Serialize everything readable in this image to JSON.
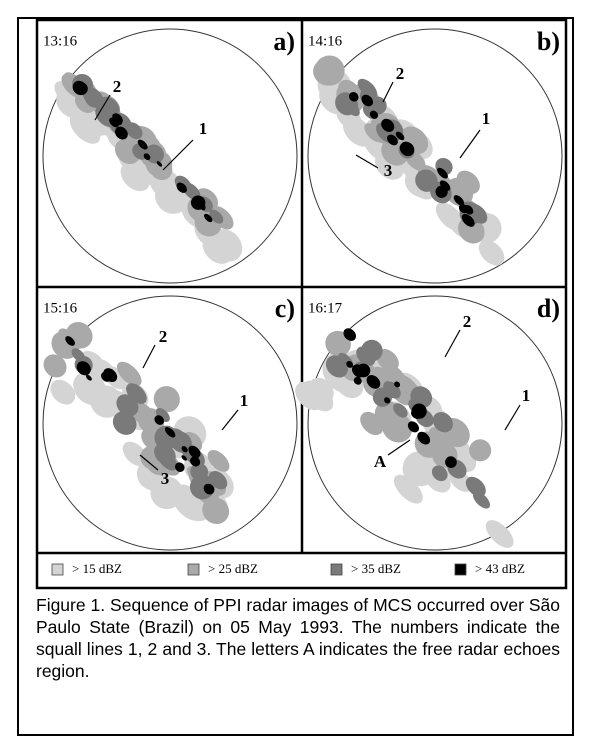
{
  "panels": [
    {
      "time": "13:16",
      "letter": "a)",
      "labels": [
        "2",
        "1"
      ]
    },
    {
      "time": "14:16",
      "letter": "b)",
      "labels": [
        "2",
        "1",
        "3"
      ]
    },
    {
      "time": "15:16",
      "letter": "c)",
      "labels": [
        "2",
        "1",
        "3"
      ]
    },
    {
      "time": "16:17",
      "letter": "d)",
      "labels": [
        "2",
        "1",
        "A"
      ]
    }
  ],
  "legend": [
    "> 15 dBZ",
    "> 25 dBZ",
    "> 35 dBZ",
    "> 43 dBZ"
  ],
  "caption": "Figure 1. Sequence of PPI radar images of MCS occurred over São Paulo State (Brazil) on 05 May 1993. The numbers indicate the squall lines 1, 2 and 3. The letters A indicates the free radar echoes region."
}
